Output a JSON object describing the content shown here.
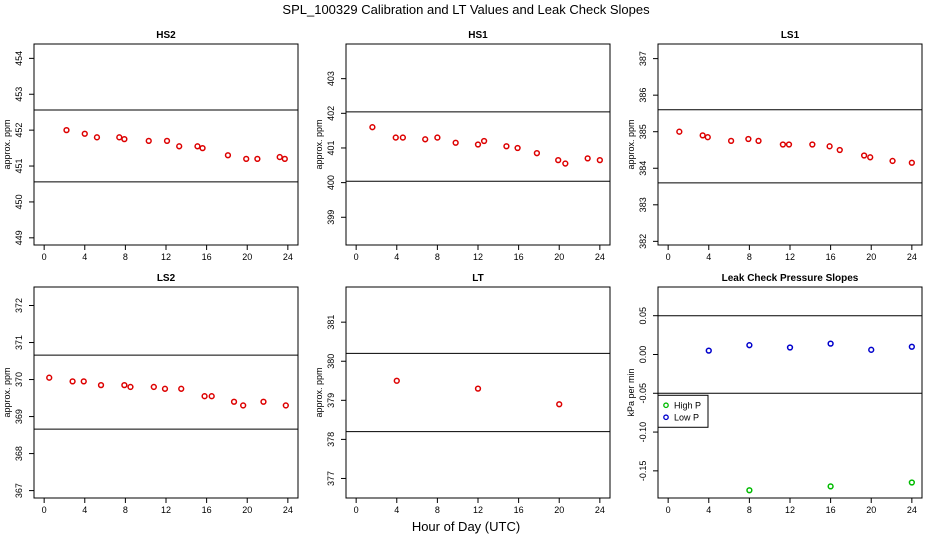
{
  "title": "SPL_100329  Calibration and LT Values and Leak Check Slopes",
  "xlabel": "Hour of Day (UTC)",
  "colors": {
    "cal": "#dd0000",
    "high_p": "#00bb00",
    "low_p": "#0000cc"
  },
  "chart_data": [
    {
      "type": "scatter",
      "title": "HS2",
      "ylabel": "approx. ppm",
      "xlim": [
        -1,
        25
      ],
      "ylim": [
        448.8,
        454.4
      ],
      "x_ticks": [
        "0",
        "4",
        "8",
        "12",
        "16",
        "20",
        "24"
      ],
      "y_ticks": [
        "449",
        "450",
        "451",
        "452",
        "453",
        "454"
      ],
      "reference_lines": [
        450.56,
        452.56
      ],
      "series": [
        {
          "color": "cal",
          "x": [
            2.2,
            4.0,
            5.2,
            7.4,
            7.9,
            10.3,
            12.1,
            13.3,
            15.1,
            15.6,
            18.1,
            19.9,
            21.0,
            23.2,
            23.7
          ],
          "y": [
            452.0,
            451.9,
            451.8,
            451.8,
            451.75,
            451.7,
            451.7,
            451.55,
            451.55,
            451.5,
            451.3,
            451.2,
            451.2,
            451.25,
            451.2
          ]
        }
      ]
    },
    {
      "type": "scatter",
      "title": "HS1",
      "ylabel": "approx. ppm",
      "xlim": [
        -1,
        25
      ],
      "ylim": [
        398.2,
        404.0
      ],
      "x_ticks": [
        "0",
        "4",
        "8",
        "12",
        "16",
        "20",
        "24"
      ],
      "y_ticks": [
        "399",
        "400",
        "401",
        "402",
        "403"
      ],
      "reference_lines": [
        400.04,
        402.04
      ],
      "series": [
        {
          "color": "cal",
          "x": [
            1.6,
            3.9,
            4.6,
            6.8,
            8.0,
            9.8,
            12.0,
            12.6,
            14.8,
            15.9,
            17.8,
            19.9,
            20.6,
            22.8,
            24.0
          ],
          "y": [
            401.6,
            401.3,
            401.3,
            401.25,
            401.3,
            401.15,
            401.1,
            401.2,
            401.05,
            401.0,
            400.85,
            400.65,
            400.55,
            400.7,
            400.65
          ]
        }
      ]
    },
    {
      "type": "scatter",
      "title": "LS1",
      "ylabel": "approx. ppm",
      "xlim": [
        -1,
        25
      ],
      "ylim": [
        381.9,
        387.4
      ],
      "x_ticks": [
        "0",
        "4",
        "8",
        "12",
        "16",
        "20",
        "24"
      ],
      "y_ticks": [
        "382",
        "383",
        "384",
        "385",
        "386",
        "387"
      ],
      "reference_lines": [
        383.6,
        385.6
      ],
      "series": [
        {
          "color": "cal",
          "x": [
            1.1,
            3.4,
            3.9,
            6.2,
            7.9,
            8.9,
            11.3,
            11.9,
            14.2,
            15.9,
            16.9,
            19.3,
            19.9,
            22.1,
            24.0
          ],
          "y": [
            385.0,
            384.9,
            384.85,
            384.75,
            384.8,
            384.75,
            384.65,
            384.65,
            384.65,
            384.6,
            384.5,
            384.35,
            384.3,
            384.2,
            384.15
          ]
        }
      ]
    },
    {
      "type": "scatter",
      "title": "LS2",
      "ylabel": "approx. ppm",
      "xlim": [
        -1,
        25
      ],
      "ylim": [
        366.8,
        372.5
      ],
      "x_ticks": [
        "0",
        "4",
        "8",
        "12",
        "16",
        "20",
        "24"
      ],
      "y_ticks": [
        "367",
        "368",
        "369",
        "370",
        "371",
        "372"
      ],
      "reference_lines": [
        368.66,
        370.66
      ],
      "series": [
        {
          "color": "cal",
          "x": [
            0.5,
            2.8,
            3.9,
            5.6,
            7.9,
            8.5,
            10.8,
            11.9,
            13.5,
            15.8,
            16.5,
            18.7,
            19.6,
            21.6,
            23.8
          ],
          "y": [
            370.05,
            369.95,
            369.95,
            369.85,
            369.85,
            369.8,
            369.8,
            369.75,
            369.75,
            369.55,
            369.55,
            369.4,
            369.3,
            369.4,
            369.3
          ]
        }
      ]
    },
    {
      "type": "scatter",
      "title": "LT",
      "ylabel": "approx. ppm",
      "xlim": [
        -1,
        25
      ],
      "ylim": [
        376.5,
        381.9
      ],
      "x_ticks": [
        "0",
        "4",
        "8",
        "12",
        "16",
        "20",
        "24"
      ],
      "y_ticks": [
        "377",
        "378",
        "379",
        "380",
        "381"
      ],
      "reference_lines": [
        378.2,
        380.2
      ],
      "series": [
        {
          "color": "cal",
          "x": [
            4.0,
            12.0,
            20.0
          ],
          "y": [
            379.5,
            379.3,
            378.9
          ]
        }
      ]
    },
    {
      "type": "scatter",
      "title": "Leak Check Pressure Slopes",
      "ylabel": "kPa per min",
      "xlim": [
        -1,
        25
      ],
      "ylim": [
        -0.185,
        0.087
      ],
      "x_ticks": [
        "0",
        "4",
        "8",
        "12",
        "16",
        "20",
        "24"
      ],
      "y_ticks": [
        "-0.15",
        "-0.10",
        "-0.05",
        "0.00",
        "0.05"
      ],
      "reference_lines": [
        -0.05,
        0.05
      ],
      "legend": {
        "placement": "center-left",
        "entries": [
          {
            "label": "High P",
            "color": "high_p"
          },
          {
            "label": "Low P",
            "color": "low_p"
          }
        ]
      },
      "series": [
        {
          "name": "High P",
          "color": "high_p",
          "x": [
            8.0,
            16.0,
            24.0
          ],
          "y": [
            -0.175,
            -0.17,
            -0.165
          ]
        },
        {
          "name": "Low P",
          "color": "low_p",
          "x": [
            4.0,
            8.0,
            12.0,
            16.0,
            20.0,
            24.0
          ],
          "y": [
            0.005,
            0.012,
            0.009,
            0.014,
            0.006,
            0.01
          ]
        }
      ]
    }
  ]
}
